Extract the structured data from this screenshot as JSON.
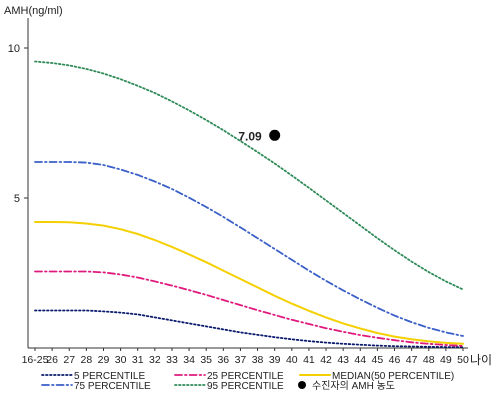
{
  "chart_data": {
    "type": "line",
    "ylabel": "AMH(ng/ml)",
    "xlabel": "나이",
    "ylim": [
      0,
      11
    ],
    "y_ticks": [
      5,
      10
    ],
    "y_tick_labels": [
      "5",
      "10"
    ],
    "categories": [
      "16-25",
      "26",
      "27",
      "28",
      "29",
      "30",
      "31",
      "32",
      "33",
      "34",
      "35",
      "36",
      "37",
      "38",
      "39",
      "40",
      "41",
      "42",
      "43",
      "44",
      "45",
      "46",
      "47",
      "48",
      "49",
      "50"
    ],
    "grid": false,
    "legend_position": "bottom",
    "series": [
      {
        "name": "5 PERCENTILE",
        "color": "#0a1a6e",
        "dash": "dot",
        "values": [
          1.25,
          1.25,
          1.25,
          1.25,
          1.22,
          1.18,
          1.12,
          1.02,
          0.92,
          0.82,
          0.72,
          0.62,
          0.52,
          0.44,
          0.36,
          0.29,
          0.23,
          0.18,
          0.14,
          0.11,
          0.08,
          0.06,
          0.05,
          0.04,
          0.03,
          0.03
        ]
      },
      {
        "name": "25 PERCENTILE",
        "color": "#e0197d",
        "dash": "dashdot",
        "values": [
          2.55,
          2.55,
          2.55,
          2.55,
          2.52,
          2.45,
          2.35,
          2.22,
          2.08,
          1.93,
          1.77,
          1.6,
          1.43,
          1.26,
          1.1,
          0.94,
          0.8,
          0.66,
          0.54,
          0.43,
          0.34,
          0.26,
          0.19,
          0.14,
          0.1,
          0.07
        ]
      },
      {
        "name": "MEDIAN(50 PERCENTILE)",
        "color": "#f5d000",
        "dash": "solid",
        "values": [
          4.2,
          4.2,
          4.19,
          4.15,
          4.08,
          3.96,
          3.8,
          3.6,
          3.37,
          3.12,
          2.86,
          2.58,
          2.3,
          2.02,
          1.74,
          1.48,
          1.24,
          1.02,
          0.82,
          0.65,
          0.5,
          0.38,
          0.29,
          0.22,
          0.17,
          0.14
        ]
      },
      {
        "name": "75 PERCENTILE",
        "color": "#3a5fc8",
        "dash": "dashdot",
        "values": [
          6.2,
          6.2,
          6.2,
          6.18,
          6.1,
          5.95,
          5.77,
          5.55,
          5.3,
          5.01,
          4.7,
          4.37,
          4.02,
          3.66,
          3.3,
          2.94,
          2.58,
          2.24,
          1.92,
          1.62,
          1.34,
          1.08,
          0.86,
          0.67,
          0.52,
          0.4
        ]
      },
      {
        "name": "95 PERCENTILE",
        "color": "#2e8b57",
        "dash": "dot",
        "values": [
          9.55,
          9.5,
          9.42,
          9.3,
          9.15,
          8.96,
          8.74,
          8.5,
          8.22,
          7.92,
          7.6,
          7.26,
          6.9,
          6.53,
          6.15,
          5.75,
          5.34,
          4.92,
          4.5,
          4.08,
          3.66,
          3.26,
          2.88,
          2.53,
          2.22,
          1.95
        ]
      }
    ],
    "patient_point": {
      "name": "수진자의 AMH 농도",
      "x_category": "39",
      "y": 7.09,
      "label": "7.09",
      "color": "#000000"
    },
    "legend_order": [
      "5 PERCENTILE",
      "25 PERCENTILE",
      "MEDIAN(50 PERCENTILE)",
      "75 PERCENTILE",
      "95 PERCENTILE",
      "수진자의 AMH 농도"
    ]
  }
}
